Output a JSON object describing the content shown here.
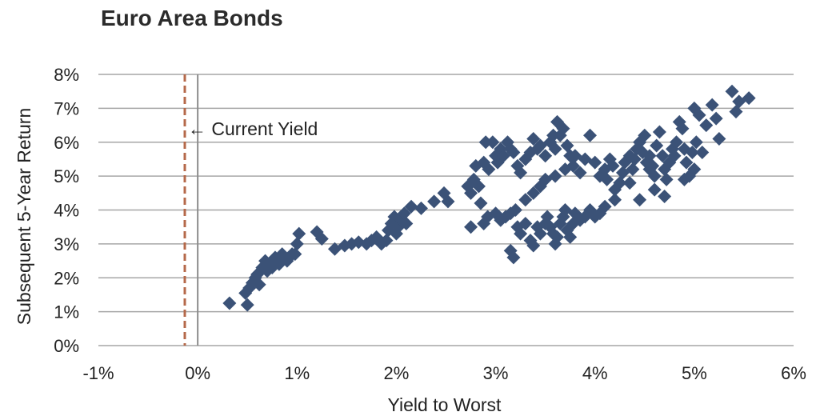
{
  "chart_data": {
    "type": "scatter",
    "title": "Euro Area Bonds",
    "xlabel": "Yield to Worst",
    "ylabel": "Subsequent 5-Year Return",
    "xlim": [
      -1,
      6
    ],
    "ylim": [
      0,
      8
    ],
    "x_ticks": [
      -1,
      0,
      1,
      2,
      3,
      4,
      5,
      6
    ],
    "y_ticks": [
      0,
      1,
      2,
      3,
      4,
      5,
      6,
      7,
      8
    ],
    "x_tick_labels": [
      "-1%",
      "0%",
      "1%",
      "2%",
      "3%",
      "4%",
      "5%",
      "6%"
    ],
    "y_tick_labels": [
      "0%",
      "1%",
      "2%",
      "3%",
      "4%",
      "5%",
      "6%",
      "7%",
      "8%"
    ],
    "grid": "horizontal",
    "marker_color": "#3b5277",
    "current_yield": {
      "value": -0.13,
      "label": "← Current Yield",
      "color": "#b5694a"
    },
    "zero_line_color": "#8c8c8c",
    "points": [
      [
        0.32,
        1.25
      ],
      [
        0.5,
        1.2
      ],
      [
        0.48,
        1.55
      ],
      [
        0.52,
        1.7
      ],
      [
        0.55,
        1.85
      ],
      [
        0.58,
        2.0
      ],
      [
        0.6,
        2.1
      ],
      [
        0.62,
        1.8
      ],
      [
        0.65,
        2.3
      ],
      [
        0.68,
        2.5
      ],
      [
        0.7,
        2.2
      ],
      [
        0.72,
        2.4
      ],
      [
        0.75,
        2.3
      ],
      [
        0.78,
        2.6
      ],
      [
        0.8,
        2.5
      ],
      [
        0.82,
        2.4
      ],
      [
        0.85,
        2.7
      ],
      [
        0.88,
        2.6
      ],
      [
        0.9,
        2.5
      ],
      [
        0.95,
        2.7
      ],
      [
        1.0,
        3.0
      ],
      [
        1.02,
        3.3
      ],
      [
        0.98,
        2.7
      ],
      [
        0.92,
        2.6
      ],
      [
        1.2,
        3.35
      ],
      [
        1.25,
        3.15
      ],
      [
        1.38,
        2.85
      ],
      [
        1.48,
        2.95
      ],
      [
        1.55,
        3.0
      ],
      [
        1.62,
        3.05
      ],
      [
        1.7,
        3.0
      ],
      [
        1.75,
        3.1
      ],
      [
        1.8,
        3.2
      ],
      [
        1.85,
        3.0
      ],
      [
        1.9,
        3.1
      ],
      [
        1.92,
        3.4
      ],
      [
        1.95,
        3.6
      ],
      [
        1.98,
        3.8
      ],
      [
        2.0,
        3.3
      ],
      [
        2.02,
        3.5
      ],
      [
        2.05,
        3.7
      ],
      [
        2.08,
        3.9
      ],
      [
        2.1,
        3.6
      ],
      [
        2.15,
        4.1
      ],
      [
        2.25,
        4.05
      ],
      [
        2.38,
        4.25
      ],
      [
        2.48,
        4.5
      ],
      [
        2.52,
        4.25
      ],
      [
        2.72,
        4.7
      ],
      [
        2.75,
        4.5
      ],
      [
        2.78,
        4.9
      ],
      [
        2.8,
        5.3
      ],
      [
        2.83,
        4.7
      ],
      [
        2.85,
        4.2
      ],
      [
        2.88,
        5.4
      ],
      [
        2.9,
        6.0
      ],
      [
        2.93,
        5.2
      ],
      [
        2.97,
        6.0
      ],
      [
        3.0,
        5.6
      ],
      [
        3.02,
        5.4
      ],
      [
        3.05,
        5.8
      ],
      [
        3.08,
        5.6
      ],
      [
        3.12,
        6.0
      ],
      [
        3.15,
        5.8
      ],
      [
        3.18,
        5.7
      ],
      [
        3.22,
        5.3
      ],
      [
        3.25,
        5.1
      ],
      [
        3.3,
        5.5
      ],
      [
        3.35,
        5.7
      ],
      [
        3.38,
        6.1
      ],
      [
        3.42,
        5.8
      ],
      [
        3.45,
        5.9
      ],
      [
        3.5,
        5.6
      ],
      [
        3.55,
        6.0
      ],
      [
        3.58,
        6.2
      ],
      [
        3.6,
        5.8
      ],
      [
        3.62,
        6.6
      ],
      [
        3.65,
        6.2
      ],
      [
        3.68,
        6.4
      ],
      [
        3.72,
        5.9
      ],
      [
        3.75,
        5.6
      ],
      [
        3.78,
        5.3
      ],
      [
        3.8,
        5.6
      ],
      [
        2.75,
        3.5
      ],
      [
        2.88,
        3.6
      ],
      [
        2.92,
        3.8
      ],
      [
        3.0,
        3.9
      ],
      [
        3.05,
        3.7
      ],
      [
        3.1,
        3.8
      ],
      [
        3.15,
        3.9
      ],
      [
        3.2,
        4.0
      ],
      [
        3.22,
        3.5
      ],
      [
        3.15,
        2.8
      ],
      [
        3.18,
        2.6
      ],
      [
        3.25,
        3.3
      ],
      [
        3.3,
        3.6
      ],
      [
        3.35,
        3.1
      ],
      [
        3.38,
        2.95
      ],
      [
        3.42,
        3.5
      ],
      [
        3.45,
        3.3
      ],
      [
        3.5,
        3.6
      ],
      [
        3.52,
        3.8
      ],
      [
        3.55,
        3.5
      ],
      [
        3.58,
        3.3
      ],
      [
        3.6,
        3.0
      ],
      [
        3.62,
        3.2
      ],
      [
        3.65,
        3.6
      ],
      [
        3.68,
        3.8
      ],
      [
        3.7,
        4.0
      ],
      [
        3.72,
        3.4
      ],
      [
        3.75,
        3.2
      ],
      [
        3.78,
        3.6
      ],
      [
        3.8,
        3.9
      ],
      [
        3.85,
        3.7
      ],
      [
        3.9,
        3.8
      ],
      [
        3.95,
        4.0
      ],
      [
        4.0,
        3.8
      ],
      [
        4.05,
        3.9
      ],
      [
        4.1,
        4.1
      ],
      [
        3.3,
        4.3
      ],
      [
        3.38,
        4.5
      ],
      [
        3.45,
        4.7
      ],
      [
        3.5,
        4.9
      ],
      [
        3.6,
        5.0
      ],
      [
        3.7,
        5.2
      ],
      [
        3.85,
        5.1
      ],
      [
        3.9,
        5.5
      ],
      [
        3.95,
        6.2
      ],
      [
        4.0,
        5.4
      ],
      [
        4.05,
        5.0
      ],
      [
        4.1,
        5.2
      ],
      [
        4.12,
        4.9
      ],
      [
        4.15,
        5.5
      ],
      [
        4.18,
        5.3
      ],
      [
        4.2,
        4.6
      ],
      [
        4.25,
        4.8
      ],
      [
        4.28,
        5.1
      ],
      [
        4.3,
        5.4
      ],
      [
        4.35,
        5.6
      ],
      [
        4.38,
        5.2
      ],
      [
        4.4,
        5.5
      ],
      [
        4.42,
        5.8
      ],
      [
        4.45,
        6.0
      ],
      [
        4.48,
        5.7
      ],
      [
        4.5,
        6.2
      ],
      [
        4.52,
        5.4
      ],
      [
        4.55,
        5.6
      ],
      [
        4.58,
        5.3
      ],
      [
        4.6,
        5.0
      ],
      [
        4.62,
        5.9
      ],
      [
        4.65,
        6.3
      ],
      [
        4.68,
        5.6
      ],
      [
        4.7,
        5.2
      ],
      [
        4.72,
        4.9
      ],
      [
        4.75,
        5.4
      ],
      [
        4.78,
        5.8
      ],
      [
        4.8,
        5.6
      ],
      [
        4.82,
        6.0
      ],
      [
        4.85,
        6.6
      ],
      [
        4.88,
        6.4
      ],
      [
        4.9,
        5.8
      ],
      [
        4.92,
        5.4
      ],
      [
        4.95,
        5.0
      ],
      [
        4.98,
        5.7
      ],
      [
        5.0,
        7.0
      ],
      [
        5.02,
        6.0
      ],
      [
        5.05,
        6.8
      ],
      [
        5.08,
        5.7
      ],
      [
        5.12,
        6.5
      ],
      [
        5.18,
        7.1
      ],
      [
        5.22,
        6.7
      ],
      [
        5.25,
        6.1
      ],
      [
        5.38,
        7.5
      ],
      [
        5.42,
        6.9
      ],
      [
        5.45,
        7.2
      ],
      [
        5.55,
        7.3
      ],
      [
        4.2,
        4.3
      ],
      [
        4.45,
        4.3
      ],
      [
        4.7,
        4.4
      ],
      [
        4.35,
        4.8
      ],
      [
        4.6,
        4.6
      ],
      [
        4.9,
        4.9
      ],
      [
        5.0,
        5.2
      ],
      [
        4.55,
        5.2
      ]
    ]
  }
}
